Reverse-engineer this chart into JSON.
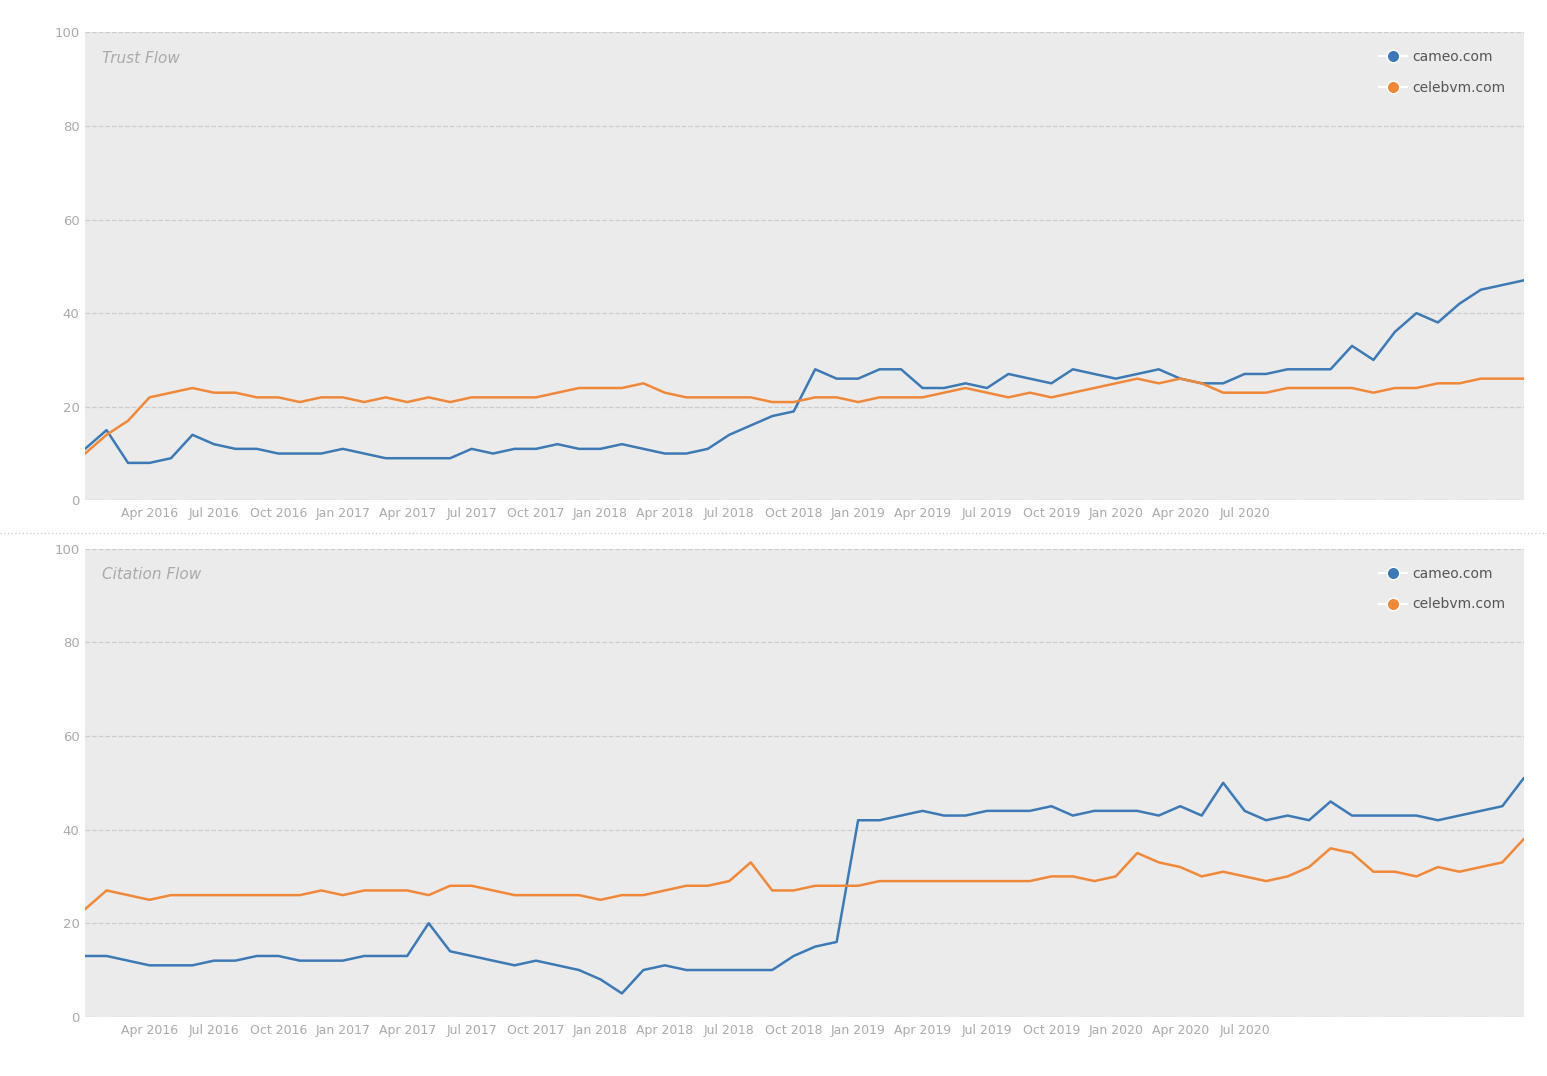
{
  "title1": "Trust Flow",
  "title2": "Citation Flow",
  "cameo_color": "#3d7ab5",
  "celebvm_color": "#f0883a",
  "fig_bg": "#ffffff",
  "plot_bg": "#ebebeb",
  "grid_color": "#cccccc",
  "label_color": "#aaaaaa",
  "legend_text_color": "#555555",
  "ylim": [
    0,
    100
  ],
  "yticks": [
    0,
    20,
    40,
    60,
    80,
    100
  ],
  "x_labels": [
    "Apr 2016",
    "Jul 2016",
    "Oct 2016",
    "Jan 2017",
    "Apr 2017",
    "Jul 2017",
    "Oct 2017",
    "Jan 2018",
    "Apr 2018",
    "Jul 2018",
    "Oct 2018",
    "Jan 2019",
    "Apr 2019",
    "Jul 2019",
    "Oct 2019",
    "Jan 2020",
    "Apr 2020",
    "Jul 2020"
  ],
  "trust_cameo": [
    11,
    15,
    8,
    8,
    9,
    14,
    12,
    11,
    11,
    10,
    10,
    10,
    11,
    10,
    9,
    9,
    9,
    9,
    11,
    10,
    11,
    11,
    12,
    11,
    11,
    12,
    11,
    10,
    10,
    11,
    14,
    16,
    18,
    19,
    28,
    26,
    26,
    28,
    28,
    24,
    24,
    25,
    24,
    27,
    26,
    25,
    28,
    27,
    26,
    27,
    28,
    26,
    25,
    25,
    27,
    27,
    28,
    28,
    28,
    33,
    30,
    36,
    40,
    38,
    42,
    45,
    46,
    47
  ],
  "trust_celebvm": [
    10,
    14,
    17,
    22,
    23,
    24,
    23,
    23,
    22,
    22,
    21,
    22,
    22,
    21,
    22,
    21,
    22,
    21,
    22,
    22,
    22,
    22,
    23,
    24,
    24,
    24,
    25,
    23,
    22,
    22,
    22,
    22,
    21,
    21,
    22,
    22,
    21,
    22,
    22,
    22,
    23,
    24,
    23,
    22,
    23,
    22,
    23,
    24,
    25,
    26,
    25,
    26,
    25,
    23,
    23,
    23,
    24,
    24,
    24,
    24,
    23,
    24,
    24,
    25,
    25,
    26,
    26,
    26
  ],
  "citation_cameo": [
    13,
    13,
    12,
    11,
    11,
    11,
    12,
    12,
    13,
    13,
    12,
    12,
    12,
    13,
    13,
    13,
    20,
    14,
    13,
    12,
    11,
    12,
    11,
    10,
    8,
    5,
    10,
    11,
    10,
    10,
    10,
    10,
    10,
    13,
    15,
    16,
    42,
    42,
    43,
    44,
    43,
    43,
    44,
    44,
    44,
    45,
    43,
    44,
    44,
    44,
    43,
    45,
    43,
    50,
    44,
    42,
    43,
    42,
    46,
    43,
    43,
    43,
    43,
    42,
    43,
    44,
    45,
    51
  ],
  "citation_celebvm": [
    23,
    27,
    26,
    25,
    26,
    26,
    26,
    26,
    26,
    26,
    26,
    27,
    26,
    27,
    27,
    27,
    26,
    28,
    28,
    27,
    26,
    26,
    26,
    26,
    25,
    26,
    26,
    27,
    28,
    28,
    29,
    33,
    27,
    27,
    28,
    28,
    28,
    29,
    29,
    29,
    29,
    29,
    29,
    29,
    29,
    30,
    30,
    29,
    30,
    35,
    33,
    32,
    30,
    31,
    30,
    29,
    30,
    32,
    36,
    35,
    31,
    31,
    30,
    32,
    31,
    32,
    33,
    38
  ],
  "tick_positions": [
    3,
    6,
    9,
    12,
    15,
    18,
    21,
    24,
    27,
    30,
    33,
    36,
    39,
    42,
    45,
    48,
    51,
    54
  ],
  "n_data": 68
}
